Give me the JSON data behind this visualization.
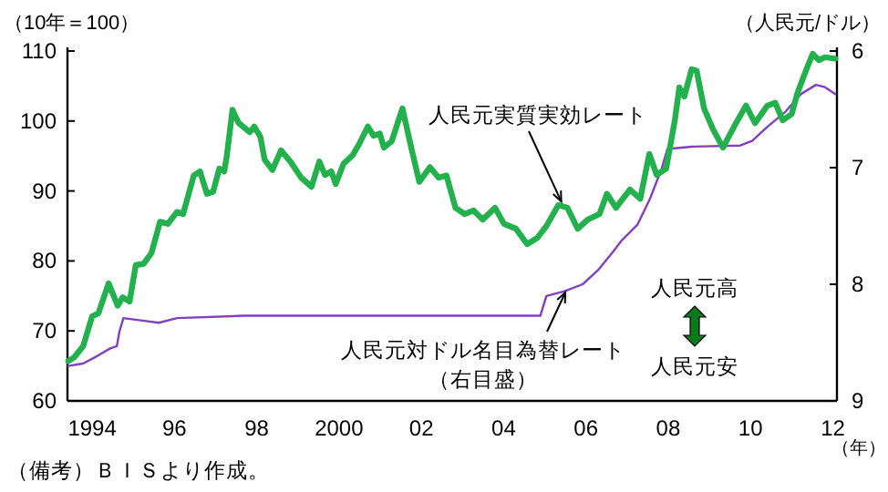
{
  "chart_data": {
    "type": "line",
    "ylabel": "（10年＝100）",
    "y2label": "（人民元/ドル）",
    "xlabel": "（年）",
    "xlim": [
      1993.4,
      2012.1
    ],
    "xticks": [
      1994,
      {
        "value": 1996,
        "label": "96"
      },
      {
        "value": 1998,
        "label": "98"
      },
      2000,
      {
        "value": 2002,
        "label": "02"
      },
      {
        "value": 2004,
        "label": "04"
      },
      {
        "value": 2006,
        "label": "06"
      },
      {
        "value": 2008,
        "label": "08"
      },
      {
        "value": 2010,
        "label": "10"
      },
      {
        "value": 2012,
        "label": "12"
      }
    ],
    "ylim": [
      60,
      110
    ],
    "yticks": [
      60,
      70,
      80,
      90,
      100,
      110
    ],
    "y2lim": [
      9,
      6
    ],
    "y2ticks": [
      6,
      7,
      8,
      9
    ],
    "series": [
      {
        "color": "#22b14c",
        "x": [
          1993.42,
          1993.56,
          1993.78,
          1994,
          1994.15,
          1994.4,
          1994.62,
          1994.74,
          1994.91,
          1995.06,
          1995.25,
          1995.44,
          1995.65,
          1995.84,
          1996.06,
          1996.21,
          1996.47,
          1996.62,
          1996.79,
          1996.94,
          1997.09,
          1997.21,
          1997.27,
          1997.41,
          1997.56,
          1997.83,
          1997.94,
          1998.09,
          1998.19,
          1998.38,
          1998.59,
          1998.83,
          1999.08,
          1999.33,
          1999.52,
          1999.66,
          1999.81,
          1999.92,
          2000.11,
          2000.33,
          2000.48,
          2000.7,
          2000.84,
          2000.99,
          2001.09,
          2001.28,
          2001.54,
          2001.77,
          2001.95,
          2002.21,
          2002.42,
          2002.61,
          2002.83,
          2003.05,
          2003.27,
          2003.49,
          2003.79,
          2004.01,
          2004.3,
          2004.57,
          2004.82,
          2005.04,
          2005.33,
          2005.55,
          2005.8,
          2006.04,
          2006.33,
          2006.51,
          2006.73,
          2007.07,
          2007.32,
          2007.54,
          2007.72,
          2007.95,
          2008.16,
          2008.27,
          2008.39,
          2008.57,
          2008.69,
          2008.87,
          2009.09,
          2009.33,
          2009.6,
          2009.89,
          2010.11,
          2010.41,
          2010.6,
          2010.78,
          2011,
          2011.14,
          2011.36,
          2011.51,
          2011.66,
          2011.81,
          2012.06
        ],
        "values": [
          65.7,
          66.2,
          67.8,
          72.1,
          72.5,
          76.8,
          73.6,
          74.8,
          74.2,
          79.4,
          79.6,
          81.1,
          85.6,
          85.3,
          87,
          86.7,
          92.2,
          92.8,
          89.6,
          89.9,
          93.2,
          92.8,
          94.9,
          101.6,
          99.7,
          98.4,
          99.2,
          97.7,
          94.5,
          93,
          95.8,
          94.1,
          91.9,
          90.6,
          94.2,
          92.3,
          92.8,
          91,
          93.9,
          95.1,
          96.6,
          99.2,
          97.9,
          98.2,
          96.2,
          97.1,
          101.8,
          95.8,
          91.3,
          93.4,
          91.9,
          92.2,
          87.6,
          86.7,
          87.2,
          85.9,
          87.6,
          85.3,
          84.6,
          82.4,
          83.3,
          85,
          88,
          87.6,
          84.6,
          85.9,
          86.7,
          89.6,
          87.6,
          90.2,
          88.9,
          95.3,
          92.3,
          93.2,
          100.1,
          104.8,
          103.5,
          107.4,
          107.2,
          101.8,
          98.8,
          96.2,
          99.2,
          102.2,
          99.7,
          102.2,
          102.6,
          100.1,
          101,
          104,
          107.4,
          109.6,
          108.7,
          109.1,
          108.9
        ]
      },
      {
        "color": "#8040c0",
        "axis": "y2",
        "x": [
          1993.42,
          1993.78,
          1994.15,
          1994.44,
          1994.6,
          1994.66,
          1994.76,
          1995.18,
          1995.62,
          1996.06,
          1997.68,
          1999.15,
          2004.89,
          2005.04,
          2005.48,
          2005.92,
          2006.29,
          2006.66,
          2006.88,
          2007.25,
          2007.54,
          2007.83,
          2007.98,
          2008.57,
          2009.75,
          2010.04,
          2010.41,
          2010.85,
          2011.22,
          2011.59,
          2011.81,
          2012.06
        ],
        "values": [
          8.7,
          8.68,
          8.61,
          8.55,
          8.53,
          8.41,
          8.29,
          8.31,
          8.33,
          8.29,
          8.27,
          8.27,
          8.27,
          8.1,
          8.06,
          8.0,
          7.88,
          7.72,
          7.62,
          7.49,
          7.28,
          7.02,
          6.84,
          6.82,
          6.81,
          6.77,
          6.65,
          6.52,
          6.37,
          6.29,
          6.31,
          6.37
        ]
      }
    ],
    "annotations": [
      {
        "text": "人民元実質実効レート",
        "x": 2005.4,
        "y": 88.5
      },
      {
        "text": "人民元対ドル名目為替レート",
        "x": 2005.5,
        "y": 75.5
      },
      "（右目盛）",
      "人民元高",
      "人民元安",
      "（備考）ＢＩＳより作成。"
    ]
  }
}
